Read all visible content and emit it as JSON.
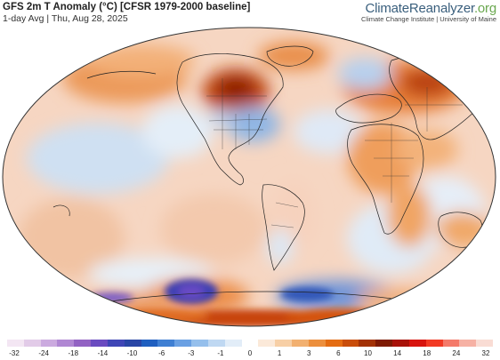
{
  "header": {
    "title": "GFS 2m T Anomaly (°C) [CFSR 1979-2000 baseline]",
    "subtitle": "1-day Avg | Thu, Aug 28, 2025"
  },
  "brand": {
    "name_main": "ClimateReanalyzer",
    "name_suffix": ".org",
    "tagline": "Climate Change Institute | University of Maine",
    "main_color": "#3a5f7d",
    "suffix_color": "#6aa84f"
  },
  "map": {
    "projection": "Winkel Tripel",
    "variable": "2m temperature anomaly",
    "anomaly_regions": [
      {
        "region": "northern Canada",
        "sign": "warm",
        "level": "+10 to +14"
      },
      {
        "region": "western Europe / Russia",
        "sign": "warm",
        "level": "+3 to +10"
      },
      {
        "region": "eastern United States",
        "sign": "cool",
        "level": "-1 to -6"
      },
      {
        "region": "North Africa / Middle East",
        "sign": "warm",
        "level": "+1 to +6"
      },
      {
        "region": "Southern Ocean (Ross Sea sector)",
        "sign": "cool",
        "level": "-10 to -24"
      },
      {
        "region": "Antarctic coast (Weddell sector)",
        "sign": "warm",
        "level": "+6 to +14"
      }
    ]
  },
  "colorbar": {
    "colors": [
      "#f3e6f3",
      "#e2cbe8",
      "#cbaadf",
      "#b087d3",
      "#9262c3",
      "#6a4bc0",
      "#3f46b6",
      "#2946a6",
      "#1f5fc0",
      "#3f7fd3",
      "#6aa0e3",
      "#95bfec",
      "#bfd8f2",
      "#e2edf8",
      "#ffffff",
      "#fbe9d9",
      "#f7cfa6",
      "#f2b070",
      "#ec8f3d",
      "#e46c12",
      "#c94d0a",
      "#a33206",
      "#7e1a03",
      "#a81208",
      "#d8140e",
      "#f23a24",
      "#f47a6a",
      "#f6b1a4",
      "#f9dcd4"
    ],
    "ticks": [
      "-32",
      "-24",
      "-18",
      "-14",
      "-10",
      "-6",
      "-3",
      "-1",
      "0",
      "1",
      "3",
      "6",
      "10",
      "14",
      "18",
      "24",
      "32"
    ]
  }
}
